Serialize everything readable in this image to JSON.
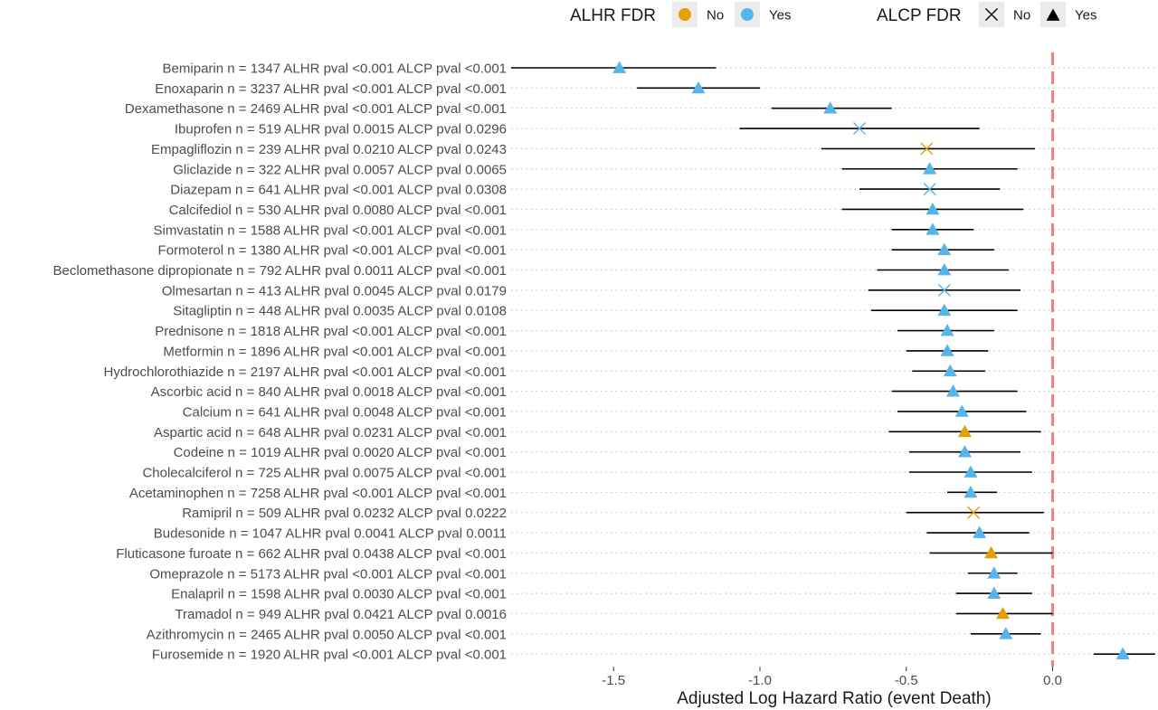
{
  "chart_data": {
    "type": "forest",
    "xlabel": "Adjusted Log Hazard Ratio (event Death)",
    "xlim": [
      -1.85,
      0.36
    ],
    "xticks": [
      -1.5,
      -1.0,
      -0.5,
      0.0
    ],
    "xtick_labels": [
      "-1.5",
      "-1.0",
      "-0.5",
      "0.0"
    ],
    "reference_line": 0.0,
    "grid": "horizontal dotted",
    "legend_position": "top",
    "colors": {
      "No": "#E69F00",
      "Yes": "#56B4E9",
      "reference": "#F08080"
    },
    "legends": [
      {
        "title": "ALHR FDR",
        "encoding": "color",
        "entries": [
          {
            "label": "No",
            "color": "#E69F00"
          },
          {
            "label": "Yes",
            "color": "#56B4E9"
          }
        ]
      },
      {
        "title": "ALCP FDR",
        "encoding": "shape",
        "entries": [
          {
            "label": "No",
            "shape": "cross"
          },
          {
            "label": "Yes",
            "shape": "triangle"
          }
        ]
      }
    ],
    "rows": [
      {
        "drug": "Bemiparin",
        "n_text": "n = ",
        "n": "1347",
        "alhr_text": "ALHR pval",
        "alhr_pval": "<0.001",
        "alcp_text": "ALCP pval",
        "alcp_pval": "<0.001",
        "estimate": -1.48,
        "ci": [
          -1.85,
          -1.15
        ],
        "alhr_fdr": "Yes",
        "alcp_fdr": "Yes"
      },
      {
        "drug": "Enoxaparin",
        "n_text": "n = ",
        "n": "3237",
        "alhr_text": "ALHR pval",
        "alhr_pval": "<0.001",
        "alcp_text": "ALCP pval",
        "alcp_pval": "<0.001",
        "estimate": -1.21,
        "ci": [
          -1.42,
          -1.0
        ],
        "alhr_fdr": "Yes",
        "alcp_fdr": "Yes"
      },
      {
        "drug": "Dexamethasone",
        "n_text": "n = ",
        "n": "2469",
        "alhr_text": "ALHR pval",
        "alhr_pval": "<0.001",
        "alcp_text": "ALCP pval",
        "alcp_pval": "<0.001",
        "estimate": -0.76,
        "ci": [
          -0.96,
          -0.55
        ],
        "alhr_fdr": "Yes",
        "alcp_fdr": "Yes"
      },
      {
        "drug": "Ibuprofen",
        "n_text": "n = ",
        "n": "519",
        "alhr_text": "ALHR pval",
        "alhr_pval": "0.0015",
        "alcp_text": "ALCP pval",
        "alcp_pval": "0.0296",
        "estimate": -0.66,
        "ci": [
          -1.07,
          -0.25
        ],
        "alhr_fdr": "Yes",
        "alcp_fdr": "No"
      },
      {
        "drug": "Empagliflozin",
        "n_text": "n = ",
        "n": "239",
        "alhr_text": "ALHR pval",
        "alhr_pval": "0.0210",
        "alcp_text": "ALCP pval",
        "alcp_pval": "0.0243",
        "estimate": -0.43,
        "ci": [
          -0.79,
          -0.06
        ],
        "alhr_fdr": "No",
        "alcp_fdr": "No"
      },
      {
        "drug": "Gliclazide",
        "n_text": "n = ",
        "n": "322",
        "alhr_text": "ALHR pval",
        "alhr_pval": "0.0057",
        "alcp_text": "ALCP pval",
        "alcp_pval": "0.0065",
        "estimate": -0.42,
        "ci": [
          -0.72,
          -0.12
        ],
        "alhr_fdr": "Yes",
        "alcp_fdr": "Yes"
      },
      {
        "drug": "Diazepam",
        "n_text": "n = ",
        "n": "641",
        "alhr_text": "ALHR pval",
        "alhr_pval": "<0.001",
        "alcp_text": "ALCP pval",
        "alcp_pval": "0.0308",
        "estimate": -0.42,
        "ci": [
          -0.66,
          -0.18
        ],
        "alhr_fdr": "Yes",
        "alcp_fdr": "No"
      },
      {
        "drug": "Calcifediol",
        "n_text": "n = ",
        "n": "530",
        "alhr_text": "ALHR pval",
        "alhr_pval": "0.0080",
        "alcp_text": "ALCP pval",
        "alcp_pval": "<0.001",
        "estimate": -0.41,
        "ci": [
          -0.72,
          -0.1
        ],
        "alhr_fdr": "Yes",
        "alcp_fdr": "Yes"
      },
      {
        "drug": "Simvastatin",
        "n_text": "n = ",
        "n": "1588",
        "alhr_text": "ALHR pval",
        "alhr_pval": "<0.001",
        "alcp_text": "ALCP pval",
        "alcp_pval": "<0.001",
        "estimate": -0.41,
        "ci": [
          -0.55,
          -0.27
        ],
        "alhr_fdr": "Yes",
        "alcp_fdr": "Yes"
      },
      {
        "drug": "Formoterol",
        "n_text": "n = ",
        "n": "1380",
        "alhr_text": "ALHR pval",
        "alhr_pval": "<0.001",
        "alcp_text": "ALCP pval",
        "alcp_pval": "<0.001",
        "estimate": -0.37,
        "ci": [
          -0.55,
          -0.2
        ],
        "alhr_fdr": "Yes",
        "alcp_fdr": "Yes"
      },
      {
        "drug": "Beclomethasone dipropionate",
        "n_text": "n = ",
        "n": "792",
        "alhr_text": "ALHR pval",
        "alhr_pval": "0.0011",
        "alcp_text": "ALCP pval",
        "alcp_pval": "<0.001",
        "estimate": -0.37,
        "ci": [
          -0.6,
          -0.15
        ],
        "alhr_fdr": "Yes",
        "alcp_fdr": "Yes"
      },
      {
        "drug": "Olmesartan",
        "n_text": "n = ",
        "n": "413",
        "alhr_text": "ALHR pval",
        "alhr_pval": "0.0045",
        "alcp_text": "ALCP pval",
        "alcp_pval": "0.0179",
        "estimate": -0.37,
        "ci": [
          -0.63,
          -0.11
        ],
        "alhr_fdr": "Yes",
        "alcp_fdr": "No"
      },
      {
        "drug": "Sitagliptin",
        "n_text": "n = ",
        "n": "448",
        "alhr_text": "ALHR pval",
        "alhr_pval": "0.0035",
        "alcp_text": "ALCP pval",
        "alcp_pval": "0.0108",
        "estimate": -0.37,
        "ci": [
          -0.62,
          -0.12
        ],
        "alhr_fdr": "Yes",
        "alcp_fdr": "Yes"
      },
      {
        "drug": "Prednisone",
        "n_text": "n = ",
        "n": "1818",
        "alhr_text": "ALHR pval",
        "alhr_pval": "<0.001",
        "alcp_text": "ALCP pval",
        "alcp_pval": "<0.001",
        "estimate": -0.36,
        "ci": [
          -0.53,
          -0.2
        ],
        "alhr_fdr": "Yes",
        "alcp_fdr": "Yes"
      },
      {
        "drug": "Metformin",
        "n_text": "n = ",
        "n": "1896",
        "alhr_text": "ALHR pval",
        "alhr_pval": "<0.001",
        "alcp_text": "ALCP pval",
        "alcp_pval": "<0.001",
        "estimate": -0.36,
        "ci": [
          -0.5,
          -0.22
        ],
        "alhr_fdr": "Yes",
        "alcp_fdr": "Yes"
      },
      {
        "drug": "Hydrochlorothiazide",
        "n_text": "n = ",
        "n": "2197",
        "alhr_text": "ALHR pval",
        "alhr_pval": "<0.001",
        "alcp_text": "ALCP pval",
        "alcp_pval": "<0.001",
        "estimate": -0.35,
        "ci": [
          -0.48,
          -0.23
        ],
        "alhr_fdr": "Yes",
        "alcp_fdr": "Yes"
      },
      {
        "drug": "Ascorbic acid",
        "n_text": "n = ",
        "n": "840",
        "alhr_text": "ALHR pval",
        "alhr_pval": "0.0018",
        "alcp_text": "ALCP pval",
        "alcp_pval": "<0.001",
        "estimate": -0.34,
        "ci": [
          -0.55,
          -0.12
        ],
        "alhr_fdr": "Yes",
        "alcp_fdr": "Yes"
      },
      {
        "drug": "Calcium",
        "n_text": "n = ",
        "n": "641",
        "alhr_text": "ALHR pval",
        "alhr_pval": "0.0048",
        "alcp_text": "ALCP pval",
        "alcp_pval": "<0.001",
        "estimate": -0.31,
        "ci": [
          -0.53,
          -0.09
        ],
        "alhr_fdr": "Yes",
        "alcp_fdr": "Yes"
      },
      {
        "drug": "Aspartic acid",
        "n_text": "n = ",
        "n": "648",
        "alhr_text": "ALHR pval",
        "alhr_pval": "0.0231",
        "alcp_text": "ALCP pval",
        "alcp_pval": "<0.001",
        "estimate": -0.3,
        "ci": [
          -0.56,
          -0.04
        ],
        "alhr_fdr": "No",
        "alcp_fdr": "Yes"
      },
      {
        "drug": "Codeine",
        "n_text": "n = ",
        "n": "1019",
        "alhr_text": "ALHR pval",
        "alhr_pval": "0.0020",
        "alcp_text": "ALCP pval",
        "alcp_pval": "<0.001",
        "estimate": -0.3,
        "ci": [
          -0.49,
          -0.11
        ],
        "alhr_fdr": "Yes",
        "alcp_fdr": "Yes"
      },
      {
        "drug": "Cholecalciferol",
        "n_text": "n = ",
        "n": "725",
        "alhr_text": "ALHR pval",
        "alhr_pval": "0.0075",
        "alcp_text": "ALCP pval",
        "alcp_pval": "<0.001",
        "estimate": -0.28,
        "ci": [
          -0.49,
          -0.07
        ],
        "alhr_fdr": "Yes",
        "alcp_fdr": "Yes"
      },
      {
        "drug": "Acetaminophen",
        "n_text": "n = ",
        "n": "7258",
        "alhr_text": "ALHR pval",
        "alhr_pval": "<0.001",
        "alcp_text": "ALCP pval",
        "alcp_pval": "<0.001",
        "estimate": -0.28,
        "ci": [
          -0.36,
          -0.19
        ],
        "alhr_fdr": "Yes",
        "alcp_fdr": "Yes"
      },
      {
        "drug": "Ramipril",
        "n_text": "n = ",
        "n": "509",
        "alhr_text": "ALHR pval",
        "alhr_pval": "0.0232",
        "alcp_text": "ALCP pval",
        "alcp_pval": "0.0222",
        "estimate": -0.27,
        "ci": [
          -0.5,
          -0.03
        ],
        "alhr_fdr": "No",
        "alcp_fdr": "No"
      },
      {
        "drug": "Budesonide",
        "n_text": "n = ",
        "n": "1047",
        "alhr_text": "ALHR pval",
        "alhr_pval": "0.0041",
        "alcp_text": "ALCP pval",
        "alcp_pval": "0.0011",
        "estimate": -0.25,
        "ci": [
          -0.43,
          -0.08
        ],
        "alhr_fdr": "Yes",
        "alcp_fdr": "Yes"
      },
      {
        "drug": "Fluticasone furoate",
        "n_text": "n = ",
        "n": "662",
        "alhr_text": "ALHR pval",
        "alhr_pval": "0.0438",
        "alcp_text": "ALCP pval",
        "alcp_pval": "<0.001",
        "estimate": -0.21,
        "ci": [
          -0.42,
          0.0
        ],
        "alhr_fdr": "No",
        "alcp_fdr": "Yes"
      },
      {
        "drug": "Omeprazole",
        "n_text": "n = ",
        "n": "5173",
        "alhr_text": "ALHR pval",
        "alhr_pval": "<0.001",
        "alcp_text": "ALCP pval",
        "alcp_pval": "<0.001",
        "estimate": -0.2,
        "ci": [
          -0.29,
          -0.12
        ],
        "alhr_fdr": "Yes",
        "alcp_fdr": "Yes"
      },
      {
        "drug": "Enalapril",
        "n_text": "n = ",
        "n": "1598",
        "alhr_text": "ALHR pval",
        "alhr_pval": "0.0030",
        "alcp_text": "ALCP pval",
        "alcp_pval": "<0.001",
        "estimate": -0.2,
        "ci": [
          -0.33,
          -0.07
        ],
        "alhr_fdr": "Yes",
        "alcp_fdr": "Yes"
      },
      {
        "drug": "Tramadol",
        "n_text": "n = ",
        "n": "949",
        "alhr_text": "ALHR pval",
        "alhr_pval": "0.0421",
        "alcp_text": "ALCP pval",
        "alcp_pval": "0.0016",
        "estimate": -0.17,
        "ci": [
          -0.33,
          0.0
        ],
        "alhr_fdr": "No",
        "alcp_fdr": "Yes"
      },
      {
        "drug": "Azithromycin",
        "n_text": "n = ",
        "n": "2465",
        "alhr_text": "ALHR pval",
        "alhr_pval": "0.0050",
        "alcp_text": "ALCP pval",
        "alcp_pval": "<0.001",
        "estimate": -0.16,
        "ci": [
          -0.28,
          -0.04
        ],
        "alhr_fdr": "Yes",
        "alcp_fdr": "Yes"
      },
      {
        "drug": "Furosemide",
        "n_text": "n = ",
        "n": "1920",
        "alhr_text": "ALHR pval",
        "alhr_pval": "<0.001",
        "alcp_text": "ALCP pval",
        "alcp_pval": "<0.001",
        "estimate": 0.24,
        "ci": [
          0.14,
          0.35
        ],
        "alhr_fdr": "Yes",
        "alcp_fdr": "Yes"
      }
    ]
  }
}
